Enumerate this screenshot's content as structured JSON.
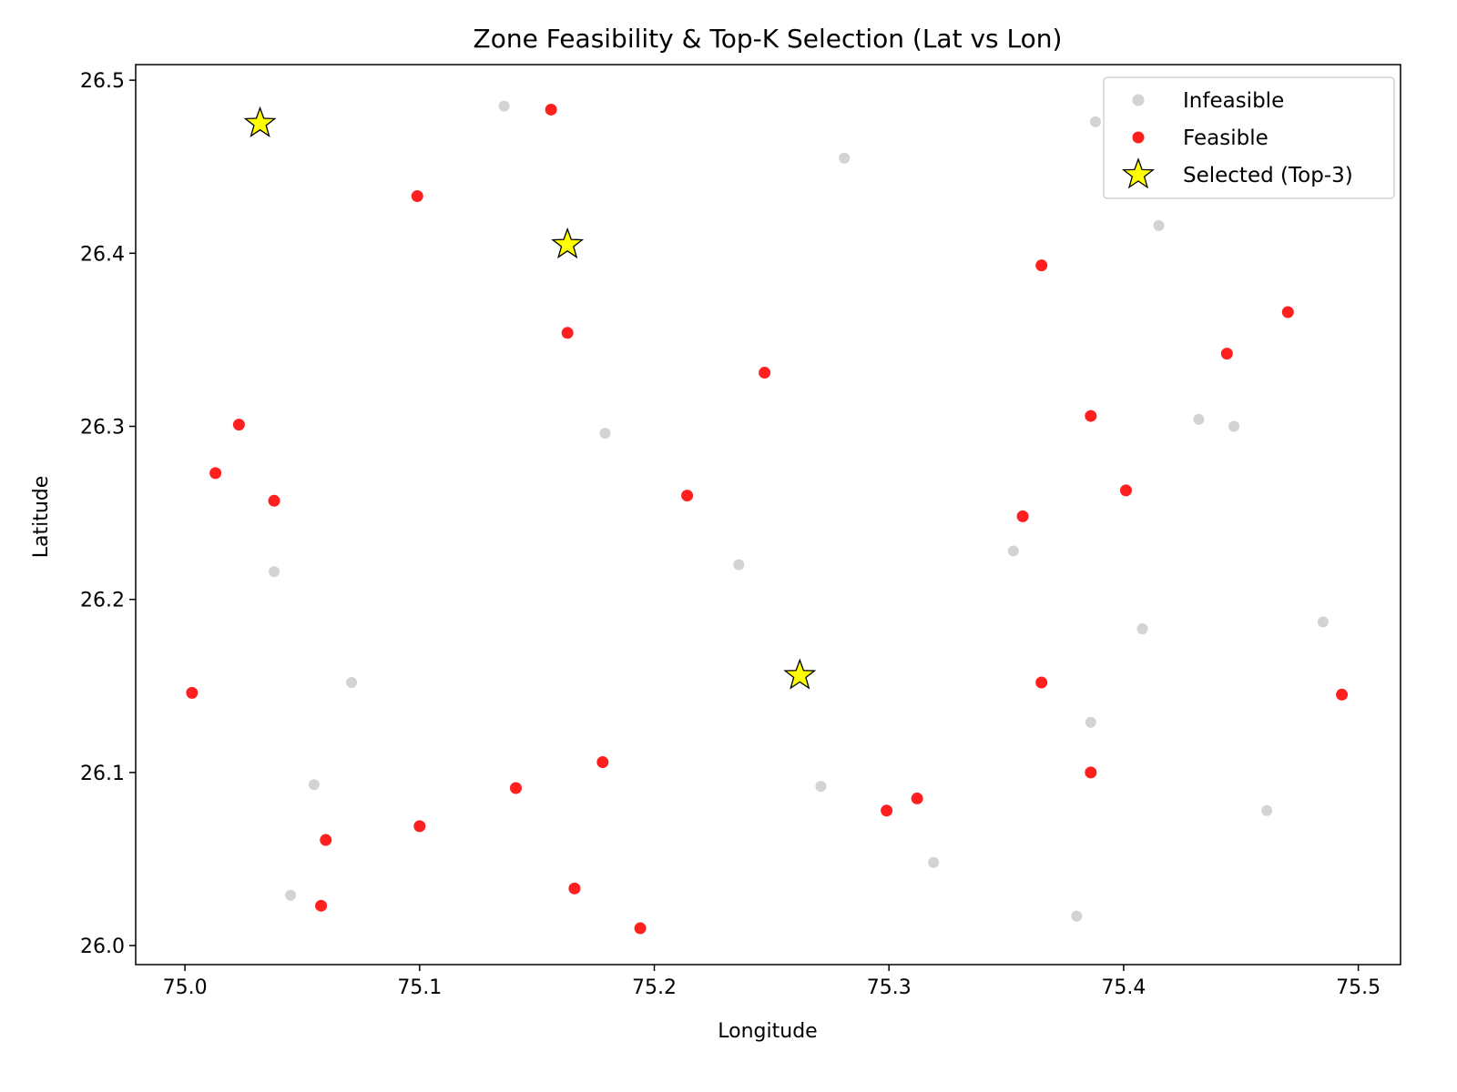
{
  "chart_data": {
    "type": "scatter",
    "title": "Zone Feasibility & Top-K Selection (Lat vs Lon)",
    "xlabel": "Longitude",
    "ylabel": "Latitude",
    "xlim": [
      74.979,
      75.518
    ],
    "ylim": [
      25.989,
      26.509
    ],
    "xticks": [
      "75.0",
      "75.1",
      "75.2",
      "75.3",
      "75.4",
      "75.5"
    ],
    "yticks": [
      "26.0",
      "26.1",
      "26.2",
      "26.3",
      "26.4",
      "26.5"
    ],
    "grid": false,
    "legend_position": "top-right",
    "series": [
      {
        "name": "Infeasible",
        "marker": "circle",
        "color": "#d3d3d3",
        "points": [
          [
            75.136,
            26.485
          ],
          [
            75.281,
            26.455
          ],
          [
            75.388,
            26.476
          ],
          [
            75.415,
            26.416
          ],
          [
            75.179,
            26.296
          ],
          [
            75.432,
            26.304
          ],
          [
            75.447,
            26.3
          ],
          [
            75.038,
            26.216
          ],
          [
            75.236,
            26.22
          ],
          [
            75.353,
            26.228
          ],
          [
            75.408,
            26.183
          ],
          [
            75.485,
            26.187
          ],
          [
            75.071,
            26.152
          ],
          [
            75.386,
            26.129
          ],
          [
            75.055,
            26.093
          ],
          [
            75.271,
            26.092
          ],
          [
            75.461,
            26.078
          ],
          [
            75.319,
            26.048
          ],
          [
            75.045,
            26.029
          ],
          [
            75.38,
            26.017
          ]
        ]
      },
      {
        "name": "Feasible",
        "marker": "circle",
        "color": "#ff0000",
        "points": [
          [
            75.156,
            26.483
          ],
          [
            75.099,
            26.433
          ],
          [
            75.365,
            26.393
          ],
          [
            75.47,
            26.366
          ],
          [
            75.163,
            26.354
          ],
          [
            75.444,
            26.342
          ],
          [
            75.247,
            26.331
          ],
          [
            75.023,
            26.301
          ],
          [
            75.386,
            26.306
          ],
          [
            75.013,
            26.273
          ],
          [
            75.038,
            26.257
          ],
          [
            75.214,
            26.26
          ],
          [
            75.401,
            26.263
          ],
          [
            75.357,
            26.248
          ],
          [
            75.003,
            26.146
          ],
          [
            75.365,
            26.152
          ],
          [
            75.493,
            26.145
          ],
          [
            75.178,
            26.106
          ],
          [
            75.141,
            26.091
          ],
          [
            75.386,
            26.1
          ],
          [
            75.312,
            26.085
          ],
          [
            75.299,
            26.078
          ],
          [
            75.1,
            26.069
          ],
          [
            75.06,
            26.061
          ],
          [
            75.166,
            26.033
          ],
          [
            75.058,
            26.023
          ],
          [
            75.194,
            26.01
          ]
        ]
      },
      {
        "name": "Selected (Top-3)",
        "marker": "star",
        "color": "#ffff00",
        "edge_color": "#000000",
        "points": [
          [
            75.032,
            26.475
          ],
          [
            75.163,
            26.405
          ],
          [
            75.262,
            26.156
          ]
        ]
      }
    ]
  }
}
